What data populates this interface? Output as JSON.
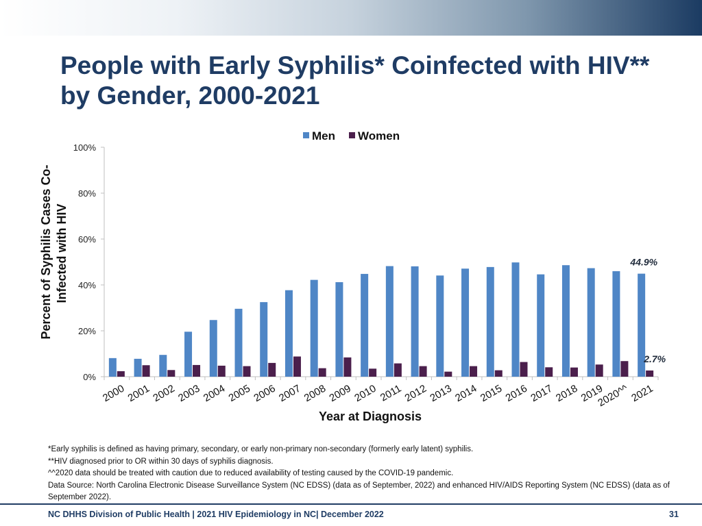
{
  "slide": {
    "title": "People with Early Syphilis* Coinfected with HIV** by Gender, 2000-2021",
    "notes": [
      "*Early syphilis is defined as having primary, secondary, or early non-primary non-secondary (formerly early latent) syphilis.",
      "**HIV diagnosed prior to OR within 30 days of syphilis diagnosis.",
      "^^2020 data should be treated with caution due to reduced availability of testing caused by the COVID-19 pandemic.",
      "Data Source: North Carolina Electronic Disease Surveillance System (NC EDSS) (data as of September, 2022) and enhanced HIV/AIDS Reporting System (NC EDSS) (data as of September 2022)."
    ],
    "footer": "NC DHHS Division of Public Health | 2021 HIV Epidemiology in NC| December 2022",
    "page_number": "31"
  },
  "colors": {
    "men": "#4f86c6",
    "women": "#4b1f4c",
    "title": "#1f3c64",
    "axis": "#bfbfbf"
  },
  "chart_data": {
    "type": "bar",
    "title": "",
    "categories": [
      "2000",
      "2001",
      "2002",
      "2003",
      "2004",
      "2005",
      "2006",
      "2007",
      "2008",
      "2009",
      "2010",
      "2011",
      "2012",
      "2013",
      "2014",
      "2015",
      "2016",
      "2017",
      "2018",
      "2019",
      "2020^^",
      "2021"
    ],
    "series": [
      {
        "name": "Men",
        "values": [
          8.1,
          7.8,
          9.5,
          19.6,
          24.7,
          29.6,
          32.5,
          37.7,
          42.2,
          41.2,
          44.8,
          48.2,
          48.1,
          44.1,
          47.1,
          47.8,
          49.8,
          44.6,
          48.6,
          47.3,
          46.0,
          44.9
        ]
      },
      {
        "name": "Women",
        "values": [
          2.4,
          5.0,
          2.9,
          5.1,
          4.8,
          4.6,
          6.0,
          8.8,
          3.7,
          8.4,
          3.5,
          5.8,
          4.6,
          2.2,
          4.6,
          2.8,
          6.4,
          4.1,
          4.0,
          5.3,
          6.8,
          2.7
        ]
      }
    ],
    "xlabel": "Year at Diagnosis",
    "ylabel": "Percent  of Syphilis Cases Co-Infected with HIV",
    "ylabel_lines": [
      "Percent  of Syphilis Cases Co-",
      "Infected with HIV"
    ],
    "ylim": [
      0,
      100
    ],
    "yticks": [
      0,
      20,
      40,
      60,
      80,
      100
    ],
    "ytick_labels": [
      "0%",
      "20%",
      "40%",
      "60%",
      "80%",
      "100%"
    ],
    "legend": [
      "Men",
      "Women"
    ],
    "legend_position": "top-right",
    "annotations": [
      {
        "text": "44.9%",
        "series": "Men",
        "category": "2021"
      },
      {
        "text": "2.7%",
        "series": "Women",
        "category": "2021"
      }
    ],
    "grid": false
  }
}
